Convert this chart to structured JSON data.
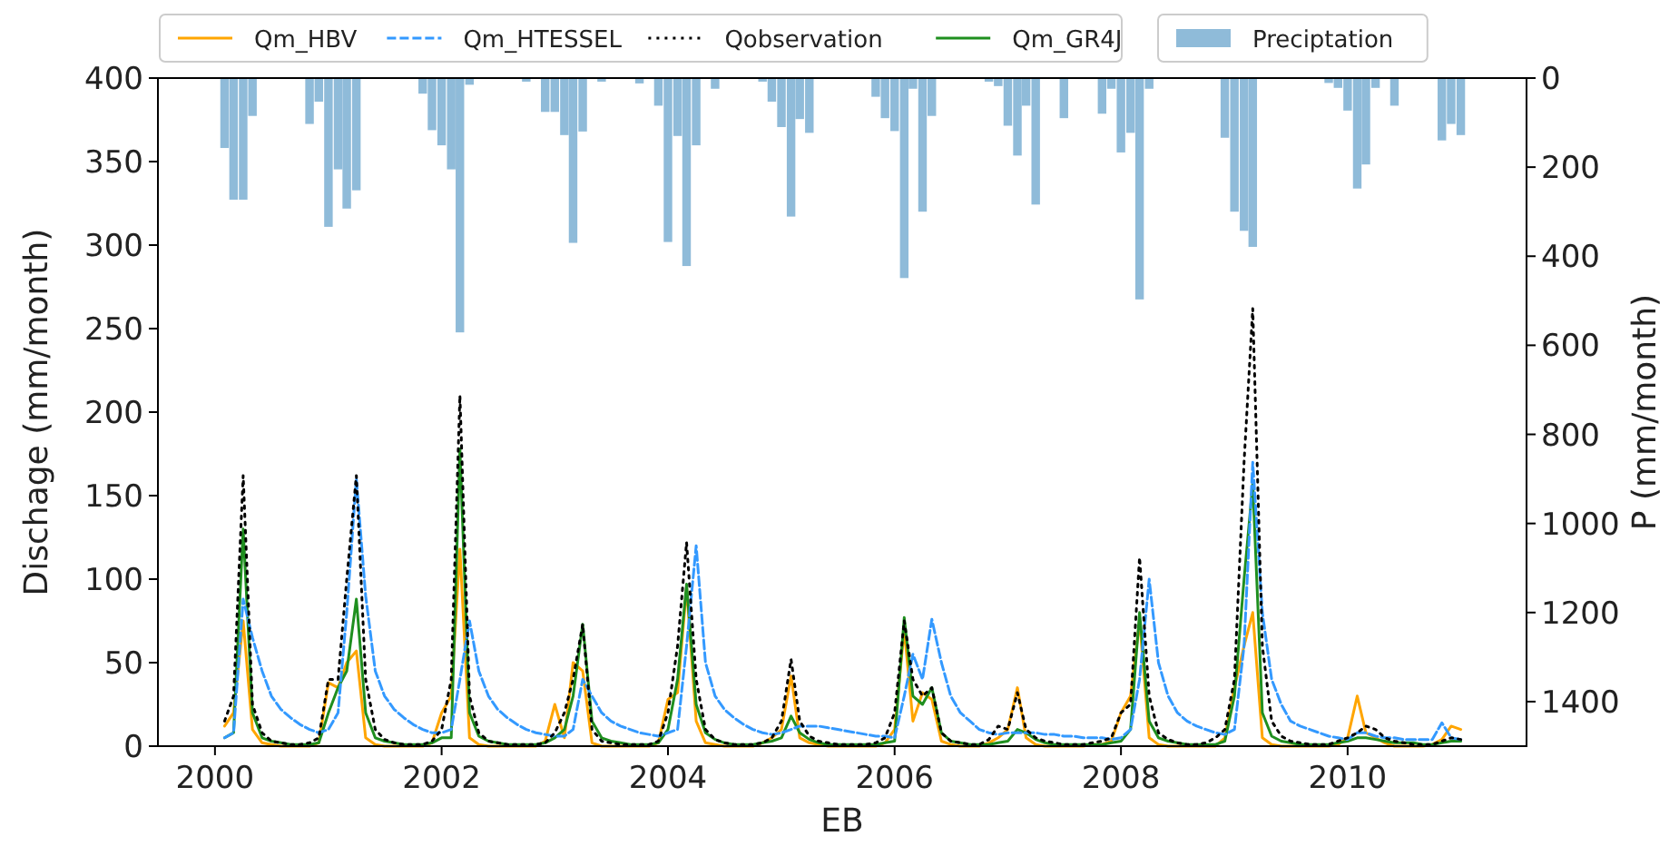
{
  "chart_data": {
    "type": "line",
    "xlabel": "EB",
    "ylabel": "Dischage (mm/month)",
    "y2label": "P (mm/month)",
    "x": [
      "2000-02",
      "2000-03",
      "2000-04",
      "2000-05",
      "2000-06",
      "2000-07",
      "2000-08",
      "2000-09",
      "2000-10",
      "2000-11",
      "2000-12",
      "2001-01",
      "2001-02",
      "2001-03",
      "2001-04",
      "2001-05",
      "2001-06",
      "2001-07",
      "2001-08",
      "2001-09",
      "2001-10",
      "2001-11",
      "2001-12",
      "2002-01",
      "2002-02",
      "2002-03",
      "2002-04",
      "2002-05",
      "2002-06",
      "2002-07",
      "2002-08",
      "2002-09",
      "2002-10",
      "2002-11",
      "2002-12",
      "2003-01",
      "2003-02",
      "2003-03",
      "2003-04",
      "2003-05",
      "2003-06",
      "2003-07",
      "2003-08",
      "2003-09",
      "2003-10",
      "2003-11",
      "2003-12",
      "2004-01",
      "2004-02",
      "2004-03",
      "2004-04",
      "2004-05",
      "2004-06",
      "2004-07",
      "2004-08",
      "2004-09",
      "2004-10",
      "2004-11",
      "2004-12",
      "2005-01",
      "2005-02",
      "2005-03",
      "2005-04",
      "2005-05",
      "2005-06",
      "2005-07",
      "2005-08",
      "2005-09",
      "2005-10",
      "2005-11",
      "2005-12",
      "2006-01",
      "2006-02",
      "2006-03",
      "2006-04",
      "2006-05",
      "2006-06",
      "2006-07",
      "2006-08",
      "2006-09",
      "2006-10",
      "2006-11",
      "2006-12",
      "2007-01",
      "2007-02",
      "2007-03",
      "2007-04",
      "2007-05",
      "2007-06",
      "2007-07",
      "2007-08",
      "2007-09",
      "2007-10",
      "2007-11",
      "2007-12",
      "2008-01",
      "2008-02",
      "2008-03",
      "2008-04",
      "2008-05",
      "2008-06",
      "2008-07",
      "2008-08",
      "2008-09",
      "2008-10",
      "2008-11",
      "2008-12",
      "2009-01",
      "2009-02",
      "2009-03",
      "2009-04",
      "2009-05",
      "2009-06",
      "2009-07",
      "2009-08",
      "2009-09",
      "2009-10",
      "2009-11",
      "2009-12",
      "2010-01",
      "2010-02",
      "2010-03",
      "2010-04",
      "2010-05",
      "2010-06",
      "2010-07",
      "2010-08",
      "2010-09",
      "2010-10",
      "2010-11",
      "2010-12",
      "2011-01"
    ],
    "xlim": [
      "1999-07",
      "2011-08"
    ],
    "xticks": [
      {
        "value": "2000",
        "label": "2000"
      },
      {
        "value": "2002",
        "label": "2002"
      },
      {
        "value": "2004",
        "label": "2004"
      },
      {
        "value": "2006",
        "label": "2006"
      },
      {
        "value": "2008",
        "label": "2008"
      },
      {
        "value": "2010",
        "label": "2010"
      }
    ],
    "ylim": [
      0,
      400
    ],
    "yticks": [
      0,
      50,
      100,
      150,
      200,
      250,
      300,
      350,
      400
    ],
    "y2lim": [
      1500,
      0
    ],
    "y2ticks": [
      0,
      200,
      400,
      600,
      800,
      1000,
      1200,
      1400
    ],
    "legend": "top",
    "series": [
      {
        "name": "Qm_HBV",
        "color": "#ffa500",
        "line_style": "solid",
        "values": [
          12,
          20,
          75,
          10,
          2,
          1,
          0,
          0,
          0,
          0,
          2,
          38,
          35,
          50,
          57,
          5,
          1,
          0,
          0,
          0,
          0,
          0,
          2,
          20,
          30,
          118,
          5,
          1,
          0,
          0,
          0,
          0,
          0,
          0,
          3,
          25,
          5,
          50,
          45,
          2,
          0,
          0,
          0,
          0,
          0,
          0,
          2,
          28,
          32,
          95,
          15,
          2,
          1,
          0,
          0,
          0,
          0,
          2,
          5,
          10,
          42,
          5,
          2,
          1,
          0,
          0,
          0,
          0,
          0,
          0,
          2,
          10,
          70,
          15,
          32,
          28,
          3,
          1,
          0,
          0,
          0,
          2,
          5,
          10,
          35,
          5,
          1,
          0,
          0,
          0,
          0,
          0,
          1,
          1,
          3,
          20,
          30,
          75,
          5,
          1,
          0,
          0,
          0,
          0,
          0,
          0,
          5,
          35,
          60,
          80,
          5,
          1,
          0,
          0,
          0,
          0,
          0,
          0,
          1,
          5,
          30,
          8,
          5,
          2,
          0,
          0,
          0,
          0,
          1,
          4,
          12,
          10
        ]
      },
      {
        "name": "Qm_HTESSEL",
        "color": "#3399ff",
        "line_style": "dashed",
        "values": [
          5,
          8,
          88,
          65,
          45,
          30,
          22,
          17,
          13,
          10,
          8,
          10,
          20,
          80,
          160,
          90,
          45,
          30,
          22,
          17,
          13,
          10,
          8,
          8,
          10,
          40,
          75,
          45,
          30,
          22,
          17,
          13,
          10,
          8,
          7,
          6,
          6,
          10,
          40,
          30,
          20,
          15,
          12,
          10,
          8,
          7,
          6,
          8,
          10,
          60,
          120,
          50,
          30,
          22,
          17,
          13,
          10,
          8,
          7,
          8,
          10,
          12,
          12,
          12,
          11,
          10,
          9,
          8,
          7,
          6,
          6,
          5,
          30,
          55,
          40,
          76,
          50,
          30,
          20,
          15,
          10,
          8,
          7,
          8,
          8,
          8,
          8,
          7,
          7,
          6,
          6,
          5,
          5,
          5,
          4,
          5,
          10,
          40,
          100,
          50,
          30,
          20,
          15,
          12,
          10,
          8,
          7,
          10,
          60,
          170,
          80,
          40,
          25,
          15,
          12,
          10,
          8,
          6,
          5,
          4,
          8,
          8,
          6,
          5,
          5,
          4,
          4,
          4,
          4,
          14,
          5,
          4
        ]
      },
      {
        "name": "Qobservation",
        "color": "#000000",
        "line_style": "dotted",
        "values": [
          15,
          30,
          162,
          25,
          8,
          3,
          2,
          1,
          1,
          2,
          5,
          40,
          40,
          100,
          162,
          40,
          10,
          4,
          2,
          1,
          1,
          1,
          3,
          10,
          40,
          210,
          30,
          8,
          3,
          2,
          1,
          1,
          1,
          1,
          2,
          8,
          20,
          40,
          73,
          10,
          3,
          2,
          1,
          1,
          1,
          1,
          3,
          20,
          60,
          122,
          40,
          10,
          4,
          2,
          1,
          1,
          1,
          2,
          5,
          15,
          52,
          15,
          6,
          3,
          2,
          1,
          1,
          1,
          1,
          2,
          5,
          20,
          75,
          40,
          30,
          35,
          8,
          3,
          2,
          1,
          1,
          4,
          12,
          10,
          32,
          10,
          5,
          3,
          2,
          1,
          1,
          1,
          2,
          3,
          5,
          20,
          25,
          113,
          30,
          8,
          4,
          2,
          1,
          1,
          2,
          5,
          10,
          40,
          170,
          262,
          60,
          15,
          6,
          3,
          2,
          1,
          1,
          1,
          3,
          5,
          8,
          12,
          10,
          5,
          3,
          2,
          1,
          1,
          1,
          3,
          5,
          4
        ]
      },
      {
        "name": "Qm_GR4J",
        "color": "#1f8f1f",
        "line_style": "solid",
        "values": [
          5,
          8,
          130,
          20,
          5,
          3,
          2,
          1,
          1,
          1,
          2,
          20,
          35,
          45,
          88,
          20,
          5,
          3,
          2,
          1,
          1,
          1,
          2,
          5,
          5,
          178,
          20,
          6,
          3,
          2,
          1,
          1,
          1,
          1,
          2,
          5,
          10,
          30,
          73,
          15,
          5,
          3,
          2,
          1,
          1,
          1,
          2,
          10,
          40,
          97,
          25,
          8,
          4,
          2,
          1,
          1,
          1,
          2,
          3,
          5,
          18,
          8,
          4,
          2,
          1,
          1,
          1,
          1,
          1,
          1,
          2,
          3,
          77,
          30,
          25,
          35,
          8,
          3,
          2,
          1,
          1,
          1,
          2,
          3,
          10,
          8,
          4,
          2,
          1,
          1,
          1,
          1,
          1,
          1,
          2,
          3,
          10,
          80,
          15,
          5,
          3,
          2,
          1,
          1,
          1,
          1,
          3,
          30,
          100,
          157,
          20,
          6,
          3,
          2,
          1,
          1,
          1,
          1,
          2,
          3,
          5,
          5,
          4,
          3,
          2,
          2,
          2,
          1,
          1,
          2,
          3,
          3
        ]
      },
      {
        "name": "Preciptation",
        "type": "bar",
        "axis": "y2",
        "color": "#8fbbd9",
        "values": [
          157,
          273,
          273,
          85,
          0,
          0,
          0,
          0,
          0,
          103,
          53,
          334,
          205,
          293,
          252,
          0,
          0,
          0,
          0,
          0,
          0,
          35,
          117,
          151,
          205,
          571,
          15,
          0,
          0,
          0,
          0,
          0,
          8,
          0,
          76,
          76,
          128,
          370,
          120,
          0,
          8,
          0,
          0,
          0,
          12,
          0,
          62,
          368,
          130,
          422,
          151,
          0,
          24,
          0,
          0,
          0,
          0,
          8,
          53,
          110,
          311,
          92,
          123,
          0,
          0,
          0,
          0,
          0,
          0,
          42,
          90,
          119,
          449,
          24,
          300,
          85,
          0,
          0,
          0,
          0,
          0,
          8,
          18,
          107,
          174,
          62,
          284,
          0,
          0,
          90,
          0,
          0,
          0,
          80,
          24,
          167,
          123,
          497,
          24,
          0,
          0,
          0,
          0,
          0,
          0,
          0,
          134,
          300,
          343,
          379,
          0,
          0,
          0,
          0,
          0,
          0,
          0,
          11,
          22,
          73,
          248,
          194,
          22,
          0,
          62,
          0,
          0,
          0,
          0,
          140,
          103,
          128
        ]
      }
    ]
  }
}
